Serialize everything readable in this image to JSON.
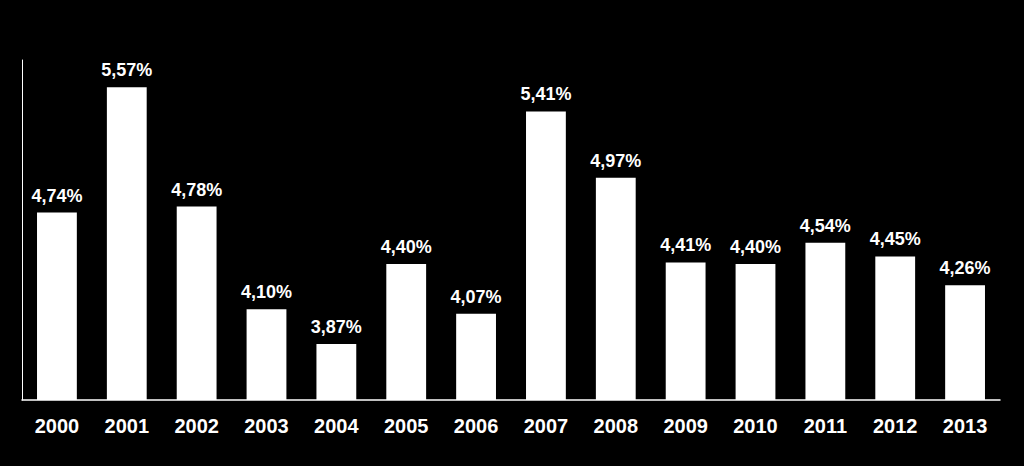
{
  "chart_data": {
    "type": "bar",
    "categories": [
      "2000",
      "2001",
      "2002",
      "2003",
      "2004",
      "2005",
      "2006",
      "2007",
      "2008",
      "2009",
      "2010",
      "2011",
      "2012",
      "2013"
    ],
    "values": [
      4.74,
      5.57,
      4.78,
      4.1,
      3.87,
      4.4,
      4.07,
      5.41,
      4.97,
      4.41,
      4.4,
      4.54,
      4.45,
      4.26
    ],
    "value_labels": [
      "4,74%",
      "5,57%",
      "4,78%",
      "4,10%",
      "3,87%",
      "4,40%",
      "4,07%",
      "5,41%",
      "4,97%",
      "4,41%",
      "4,40%",
      "4,54%",
      "4,45%",
      "4,26%"
    ],
    "color": "#ffffff",
    "ylim": [
      3.5,
      5.75
    ],
    "grid": false,
    "data_labels": true,
    "tick_labels": "x"
  }
}
